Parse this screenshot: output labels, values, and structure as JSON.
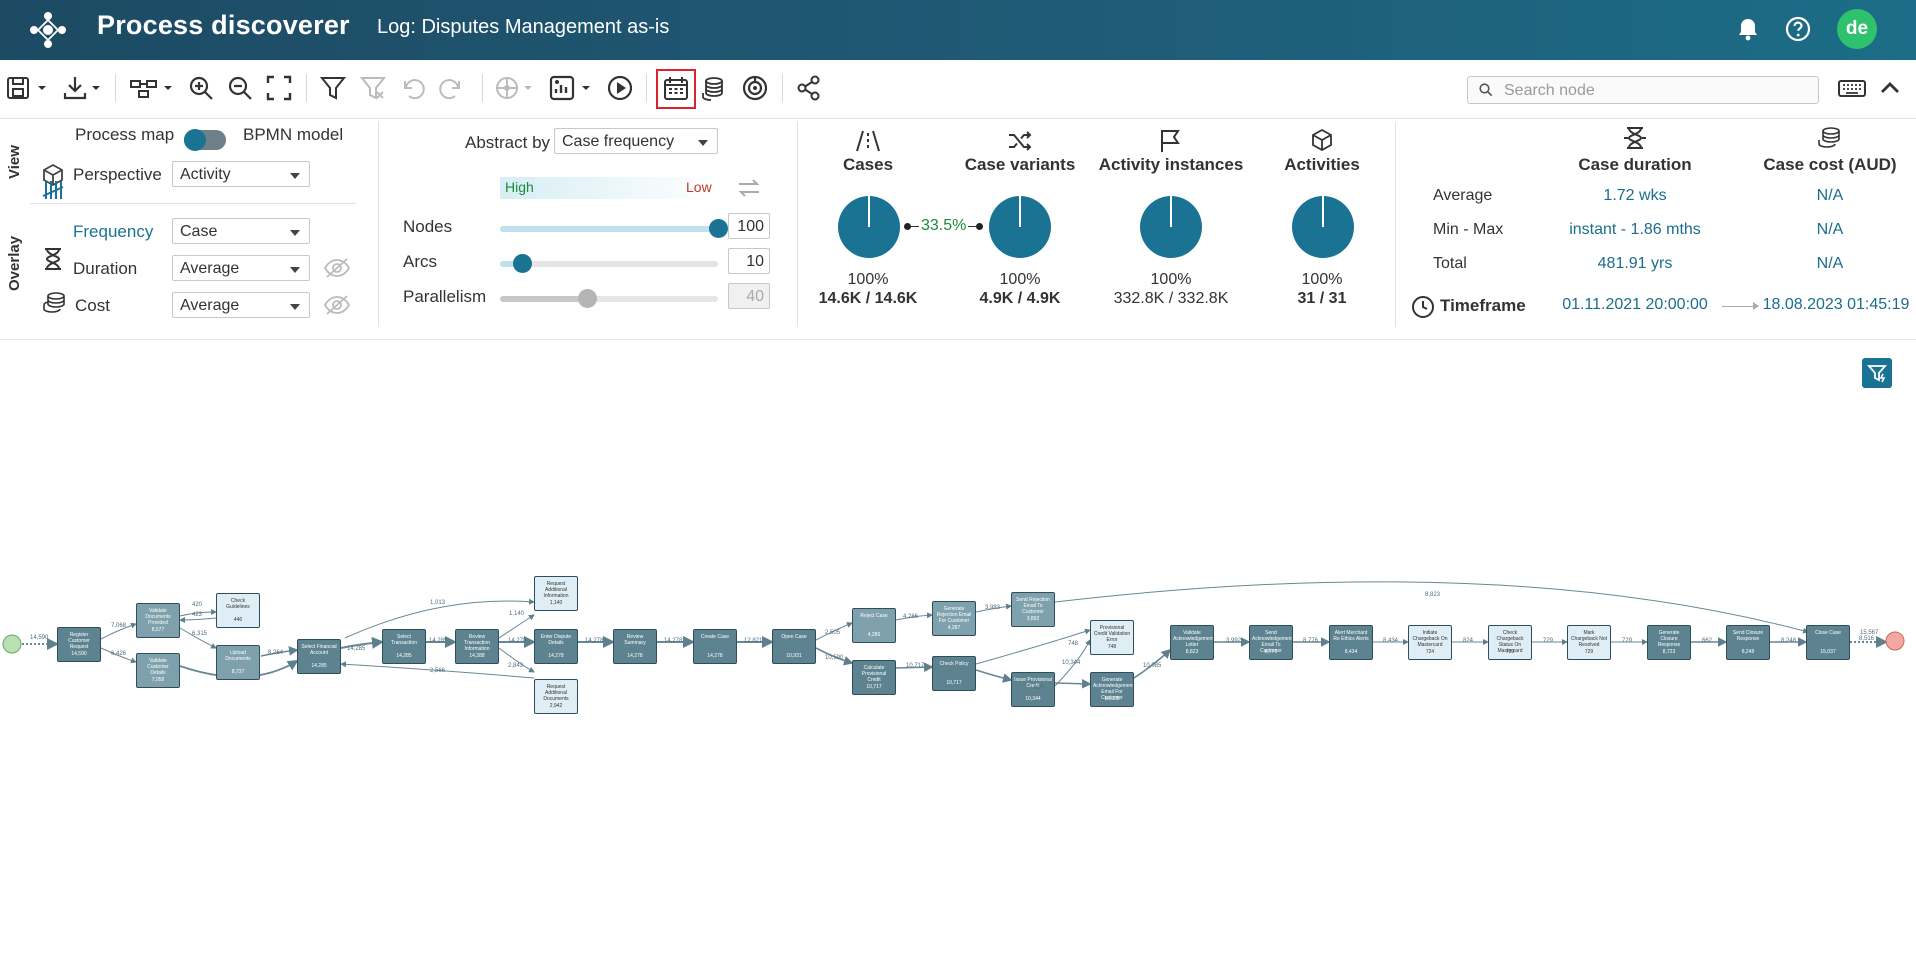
{
  "header": {
    "app_title": "Process discoverer",
    "log_title": "Log: Disputes Management as-is",
    "avatar_initials": "de",
    "logo_icon": "app-logo-icon",
    "bell_icon": "bell-icon",
    "help_icon": "help-icon"
  },
  "toolbar": {
    "search_placeholder": "Search node",
    "icons": [
      "save-icon",
      "download-icon",
      "layout-icon",
      "zoom-in-icon",
      "zoom-out-icon",
      "fit-screen-icon",
      "filter-icon",
      "clear-filter-icon",
      "undo-icon",
      "redo-icon",
      "animation-icon",
      "dashboard-icon",
      "play-icon",
      "calendar-icon",
      "cost-icon",
      "target-icon",
      "share-icon",
      "keyboard-icon",
      "collapse-icon"
    ],
    "active_icon": "calendar-icon"
  },
  "view": {
    "section_label": "View",
    "process_map_label": "Process map",
    "bpmn_label": "BPMN model",
    "perspective_label": "Perspective",
    "perspective_value": "Activity"
  },
  "overlay": {
    "section_label": "Overlay",
    "frequency_label": "Frequency",
    "frequency_value": "Case",
    "duration_label": "Duration",
    "duration_value": "Average",
    "cost_label": "Cost",
    "cost_value": "Average"
  },
  "abstraction": {
    "abstract_by_label": "Abstract by",
    "abstract_by_value": "Case frequency",
    "high_label": "High",
    "low_label": "Low",
    "nodes_label": "Nodes",
    "nodes_value": "100",
    "nodes_level": 1.0,
    "arcs_label": "Arcs",
    "arcs_value": "10",
    "arcs_level": 0.1,
    "parallelism_label": "Parallelism",
    "parallelism_value": "40",
    "parallelism_level": 0.4
  },
  "stats": {
    "cases": {
      "label": "Cases",
      "pct": "100%",
      "value": "14.6K / 14.6K"
    },
    "variants_ratio": "33.5%",
    "case_variants": {
      "label": "Case variants",
      "pct": "100%",
      "value": "4.9K / 4.9K"
    },
    "activity_instances": {
      "label": "Activity instances",
      "pct": "100%",
      "value": "332.8K / 332.8K"
    },
    "activities": {
      "label": "Activities",
      "pct": "100%",
      "value": "31 / 31"
    }
  },
  "durations": {
    "case_duration_label": "Case duration",
    "case_cost_label": "Case cost (AUD)",
    "rows": [
      {
        "label": "Average",
        "duration": "1.72 wks",
        "cost": "N/A"
      },
      {
        "label": "Min - Max",
        "duration": "instant - 1.86 mths",
        "cost": "N/A"
      },
      {
        "label": "Total",
        "duration": "481.91 yrs",
        "cost": "N/A"
      }
    ],
    "timeframe_label": "Timeframe",
    "timeframe_start": "01.11.2021 20:00:00",
    "timeframe_end": "18.08.2023 01:45:19"
  },
  "map": {
    "nodes": [
      {
        "id": "n1",
        "label": "Register Customer Request",
        "count": "14,590",
        "style": "dark"
      },
      {
        "id": "n2",
        "label": "Validate Documents Provided",
        "count": "8,577",
        "style": "mid"
      },
      {
        "id": "n3",
        "label": "Validate Customer Details",
        "count": "7,058",
        "style": "mid"
      },
      {
        "id": "n4",
        "label": "Check Guidelines",
        "count": "446",
        "style": "light"
      },
      {
        "id": "n5",
        "label": "Upload Documents",
        "count": "8,737",
        "style": "mid"
      },
      {
        "id": "n6",
        "label": "Select Financial Account",
        "count": "14,285",
        "style": "dark"
      },
      {
        "id": "n7",
        "label": "Select Transaction",
        "count": "14,285",
        "style": "dark"
      },
      {
        "id": "n8",
        "label": "Review Transaction Information",
        "count": "14,388",
        "style": "dark"
      },
      {
        "id": "n9",
        "label": "Request Additional Information",
        "count": "1,140",
        "style": "light"
      },
      {
        "id": "n10",
        "label": "Request Additional Documents",
        "count": "2,942",
        "style": "light"
      },
      {
        "id": "n11",
        "label": "Enter Dispute Details",
        "count": "14,278",
        "style": "dark"
      },
      {
        "id": "n12",
        "label": "Review Summary",
        "count": "14,278",
        "style": "dark"
      },
      {
        "id": "n13",
        "label": "Create Case",
        "count": "14,278",
        "style": "dark"
      },
      {
        "id": "n14",
        "label": "Open Case",
        "count": "10,931",
        "style": "dark"
      },
      {
        "id": "n15",
        "label": "Reject Case",
        "count": "4,286",
        "style": "mid"
      },
      {
        "id": "n16",
        "label": "Calculate Provisional Credit",
        "count": "10,717",
        "style": "dark"
      },
      {
        "id": "n17",
        "label": "Generate Rejection Email For Customer",
        "count": "4,287",
        "style": "mid"
      },
      {
        "id": "n18",
        "label": "Check Policy",
        "count": "10,717",
        "style": "dark"
      },
      {
        "id": "n19",
        "label": "Send Rejection Email To Customer",
        "count": "3,892",
        "style": "mid"
      },
      {
        "id": "n20",
        "label": "Provisional Credit Validation Error",
        "count": "748",
        "style": "light"
      },
      {
        "id": "n21",
        "label": "Issue Provisional Credit",
        "count": "10,344",
        "style": "dark"
      },
      {
        "id": "n22",
        "label": "Generate Acknowledgement Email For Customer",
        "count": "10,085",
        "style": "dark"
      },
      {
        "id": "n23",
        "label": "Validate Acknowledgement Letter",
        "count": "8,823",
        "style": "dark"
      },
      {
        "id": "n24",
        "label": "Send Acknowledgement Email To Customer",
        "count": "8,776",
        "style": "dark"
      },
      {
        "id": "n25",
        "label": "Alert Merchant Re Ethics Alerts",
        "count": "8,434",
        "style": "dark"
      },
      {
        "id": "n26",
        "label": "Initiate Chargeback On Mastercard",
        "count": "724",
        "style": "light"
      },
      {
        "id": "n27",
        "label": "Check Chargeback Status On Mastercard",
        "count": "729",
        "style": "light"
      },
      {
        "id": "n28",
        "label": "Mark Chargeback Not Resolved",
        "count": "729",
        "style": "light"
      },
      {
        "id": "n29",
        "label": "Generate Closure Response",
        "count": "8,723",
        "style": "dark"
      },
      {
        "id": "n30",
        "label": "Send Closure Response",
        "count": "8,248",
        "style": "dark"
      },
      {
        "id": "n31",
        "label": "Close Case",
        "count": "15,037",
        "style": "dark"
      }
    ],
    "edge_labels": [
      "14,590",
      "7,068",
      "420",
      "423",
      "6,315",
      "6,426",
      "8,264",
      "14,285",
      "1,013",
      "14,285",
      "1,140",
      "14,278",
      "2,843",
      "2,566",
      "14,278",
      "14,278",
      "12,821",
      "2,505",
      "10,590",
      "4,286",
      "3,983",
      "10,717",
      "748",
      "690",
      "10,344",
      "10,085",
      "8,823",
      "3,992",
      "8,776",
      "8,434",
      "824",
      "729",
      "729",
      "662",
      "8,248",
      "8,516",
      "15,567"
    ]
  }
}
